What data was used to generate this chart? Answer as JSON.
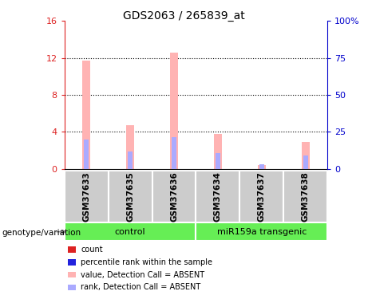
{
  "title": "GDS2063 / 265839_at",
  "samples": [
    "GSM37633",
    "GSM37635",
    "GSM37636",
    "GSM37634",
    "GSM37637",
    "GSM37638"
  ],
  "group_labels": [
    "control",
    "miR159a transgenic"
  ],
  "group_color": "#66ee55",
  "bar_color_absent": "#ffb3b3",
  "rank_color_absent": "#aaaaff",
  "value_absent": [
    11.7,
    4.7,
    12.6,
    3.8,
    0.4,
    2.9
  ],
  "rank_absent": [
    20.0,
    12.0,
    21.5,
    10.5,
    3.0,
    9.0
  ],
  "ylim_left": [
    0,
    16
  ],
  "ylim_right": [
    0,
    100
  ],
  "yticks_left": [
    0,
    4,
    8,
    12,
    16
  ],
  "yticks_right": [
    0,
    25,
    50,
    75,
    100
  ],
  "yticklabels_left": [
    "0",
    "4",
    "8",
    "12",
    "16"
  ],
  "yticklabels_right": [
    "0",
    "25",
    "50",
    "75",
    "100%"
  ],
  "legend_items": [
    {
      "label": "count",
      "color": "#dd2222"
    },
    {
      "label": "percentile rank within the sample",
      "color": "#2222dd"
    },
    {
      "label": "value, Detection Call = ABSENT",
      "color": "#ffb3b3"
    },
    {
      "label": "rank, Detection Call = ABSENT",
      "color": "#aaaaff"
    }
  ],
  "genotype_label": "genotype/variation",
  "bar_width": 0.18,
  "bg_color": "#ffffff",
  "left_axis_color": "#dd2222",
  "right_axis_color": "#0000cc",
  "sample_box_color": "#cccccc",
  "title_fontsize": 10,
  "axis_fontsize": 8,
  "label_fontsize": 7.5
}
